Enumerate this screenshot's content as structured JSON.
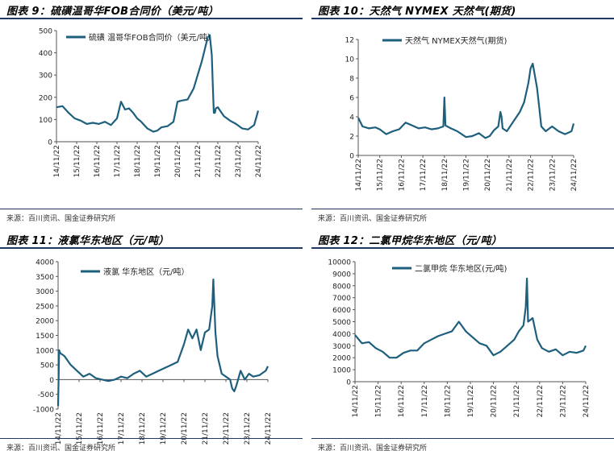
{
  "colors": {
    "line": "#1d5f7d",
    "rule": "#1f3864",
    "axis": "#555555"
  },
  "panels": [
    {
      "title": "图表 9：硫磺温哥华FOB合同价（美元/吨）",
      "source": "来源：百川资讯、国金证券研究所",
      "chart_data": {
        "type": "line",
        "series": [
          {
            "name": "硫磺 温哥华FOB合同价（美元/吨）"
          }
        ],
        "xlabel": "",
        "ylabel": "",
        "ylim": [
          0,
          500
        ],
        "yticks": [
          0,
          100,
          200,
          300,
          400,
          500
        ],
        "xticks": [
          "14/11/22",
          "15/11/22",
          "16/11/22",
          "17/11/22",
          "18/11/22",
          "19/11/22",
          "20/11/22",
          "21/11/22",
          "22/11/22",
          "23/11/22",
          "24/11/22"
        ],
        "x": [
          0,
          0.3,
          0.6,
          0.9,
          1.2,
          1.5,
          1.8,
          2.1,
          2.4,
          2.7,
          3.0,
          3.2,
          3.4,
          3.6,
          3.8,
          4.0,
          4.2,
          4.5,
          4.8,
          5.0,
          5.2,
          5.5,
          5.8,
          6.0,
          6.2,
          6.5,
          6.8,
          7.0,
          7.2,
          7.5,
          7.6,
          7.7,
          7.75,
          7.8,
          7.85,
          7.9,
          8.0,
          8.3,
          8.6,
          8.9,
          9.2,
          9.5,
          9.8,
          10.0
        ],
        "values": [
          155,
          160,
          130,
          105,
          95,
          80,
          85,
          80,
          90,
          75,
          105,
          180,
          145,
          150,
          130,
          105,
          90,
          60,
          45,
          50,
          65,
          70,
          90,
          180,
          185,
          190,
          240,
          300,
          360,
          470,
          480,
          390,
          250,
          130,
          130,
          150,
          155,
          115,
          95,
          80,
          60,
          55,
          75,
          140
        ],
        "grid": false,
        "legend": "top-left"
      }
    },
    {
      "title": "图表 10：天然气 NYMEX 天然气(期货)",
      "source": "来源：百川资讯、国金证券研究所",
      "chart_data": {
        "type": "line",
        "series": [
          {
            "name": "天然气 NYMEX天然气(期货)"
          }
        ],
        "xlabel": "",
        "ylabel": "",
        "ylim": [
          0,
          12
        ],
        "yticks": [
          0,
          2,
          4,
          6,
          8,
          10,
          12
        ],
        "xticks": [
          "14/11/22",
          "15/11/22",
          "16/11/22",
          "17/11/22",
          "18/11/22",
          "19/11/22",
          "20/11/22",
          "21/11/22",
          "22/11/22",
          "23/11/22",
          "24/11/22"
        ],
        "x": [
          0,
          0.2,
          0.5,
          0.8,
          1.0,
          1.3,
          1.6,
          1.9,
          2.2,
          2.5,
          2.8,
          3.1,
          3.4,
          3.7,
          3.95,
          4.0,
          4.05,
          4.3,
          4.6,
          5.0,
          5.3,
          5.6,
          5.9,
          6.1,
          6.3,
          6.5,
          6.6,
          6.65,
          6.7,
          6.9,
          7.2,
          7.5,
          7.7,
          7.9,
          8.0,
          8.1,
          8.3,
          8.4,
          8.5,
          8.7,
          9.0,
          9.3,
          9.6,
          9.9,
          10.0
        ],
        "values": [
          3.9,
          3.0,
          2.8,
          2.9,
          2.7,
          2.2,
          2.5,
          2.7,
          3.4,
          3.1,
          2.8,
          2.9,
          2.7,
          2.8,
          3.0,
          6.0,
          3.1,
          2.8,
          2.5,
          1.9,
          2.0,
          2.3,
          1.8,
          2.0,
          2.6,
          3.0,
          4.5,
          4.0,
          2.8,
          2.5,
          3.5,
          4.5,
          5.5,
          7.5,
          9.0,
          9.5,
          7.0,
          5.0,
          3.0,
          2.5,
          3.0,
          2.5,
          2.2,
          2.5,
          3.3
        ],
        "grid": false,
        "legend": "top-left"
      }
    },
    {
      "title": "图表 11：液氯华东地区（元/吨）",
      "source": "来源：百川资讯、国金证券研究所",
      "chart_data": {
        "type": "line",
        "series": [
          {
            "name": "液氯 华东地区（元/吨）"
          }
        ],
        "xlabel": "",
        "ylabel": "",
        "ylim": [
          -1000,
          4000
        ],
        "yticks": [
          -1000,
          -500,
          0,
          500,
          1000,
          1500,
          2000,
          2500,
          3000,
          3500,
          4000
        ],
        "xticks": [
          "14/11/22",
          "15/11/22",
          "16/11/22",
          "17/11/22",
          "18/11/22",
          "19/11/22",
          "20/11/22",
          "21/11/22",
          "22/11/22",
          "23/11/22",
          "24/11/22"
        ],
        "x": [
          0,
          0.05,
          0.1,
          0.3,
          0.6,
          0.9,
          1.2,
          1.5,
          1.8,
          2.1,
          2.4,
          2.7,
          3.0,
          3.3,
          3.6,
          3.9,
          4.2,
          4.5,
          4.8,
          5.1,
          5.4,
          5.7,
          6.0,
          6.2,
          6.4,
          6.6,
          6.8,
          7.0,
          7.2,
          7.35,
          7.4,
          7.5,
          7.6,
          7.8,
          8.0,
          8.2,
          8.3,
          8.4,
          8.5,
          8.7,
          8.9,
          9.1,
          9.3,
          9.6,
          9.9,
          10.0
        ],
        "values": [
          -900,
          1000,
          900,
          800,
          500,
          300,
          100,
          200,
          50,
          0,
          -50,
          0,
          100,
          50,
          200,
          300,
          100,
          200,
          300,
          400,
          500,
          600,
          1200,
          1700,
          1400,
          1700,
          1000,
          1600,
          1700,
          2500,
          3400,
          1600,
          800,
          200,
          100,
          0,
          -300,
          -400,
          -200,
          300,
          0,
          200,
          100,
          150,
          300,
          450
        ],
        "grid": false,
        "legend": "top-left"
      }
    },
    {
      "title": "图表 12：二氯甲烷华东地区（元/吨）",
      "source": "来源：百川资讯、国金证券研究所",
      "chart_data": {
        "type": "line",
        "series": [
          {
            "name": "二氯甲烷 华东地区(元/吨)"
          }
        ],
        "xlabel": "",
        "ylabel": "",
        "ylim": [
          0,
          10000
        ],
        "yticks": [
          0,
          1000,
          2000,
          3000,
          4000,
          5000,
          6000,
          7000,
          8000,
          9000,
          10000
        ],
        "xticks": [
          "14/11/22",
          "15/11/22",
          "16/11/22",
          "17/11/22",
          "18/11/22",
          "19/11/22",
          "20/11/22",
          "21/11/22",
          "22/11/22",
          "23/11/22",
          "24/11/22"
        ],
        "x": [
          0,
          0.3,
          0.6,
          0.9,
          1.2,
          1.5,
          1.8,
          2.1,
          2.4,
          2.7,
          3.0,
          3.3,
          3.6,
          3.9,
          4.2,
          4.5,
          4.8,
          5.1,
          5.4,
          5.7,
          6.0,
          6.3,
          6.6,
          6.9,
          7.1,
          7.3,
          7.4,
          7.45,
          7.5,
          7.7,
          7.9,
          8.1,
          8.4,
          8.7,
          9.0,
          9.3,
          9.6,
          9.9,
          10.0
        ],
        "values": [
          3900,
          3200,
          3300,
          2800,
          2500,
          2000,
          2000,
          2400,
          2600,
          2600,
          3200,
          3500,
          3800,
          4000,
          4200,
          5000,
          4200,
          3700,
          3200,
          3000,
          2200,
          2500,
          3000,
          3500,
          4200,
          4700,
          6200,
          8600,
          5000,
          5300,
          3500,
          2800,
          2500,
          2700,
          2200,
          2500,
          2400,
          2600,
          3000
        ],
        "grid": false,
        "legend": "top-left"
      }
    }
  ]
}
